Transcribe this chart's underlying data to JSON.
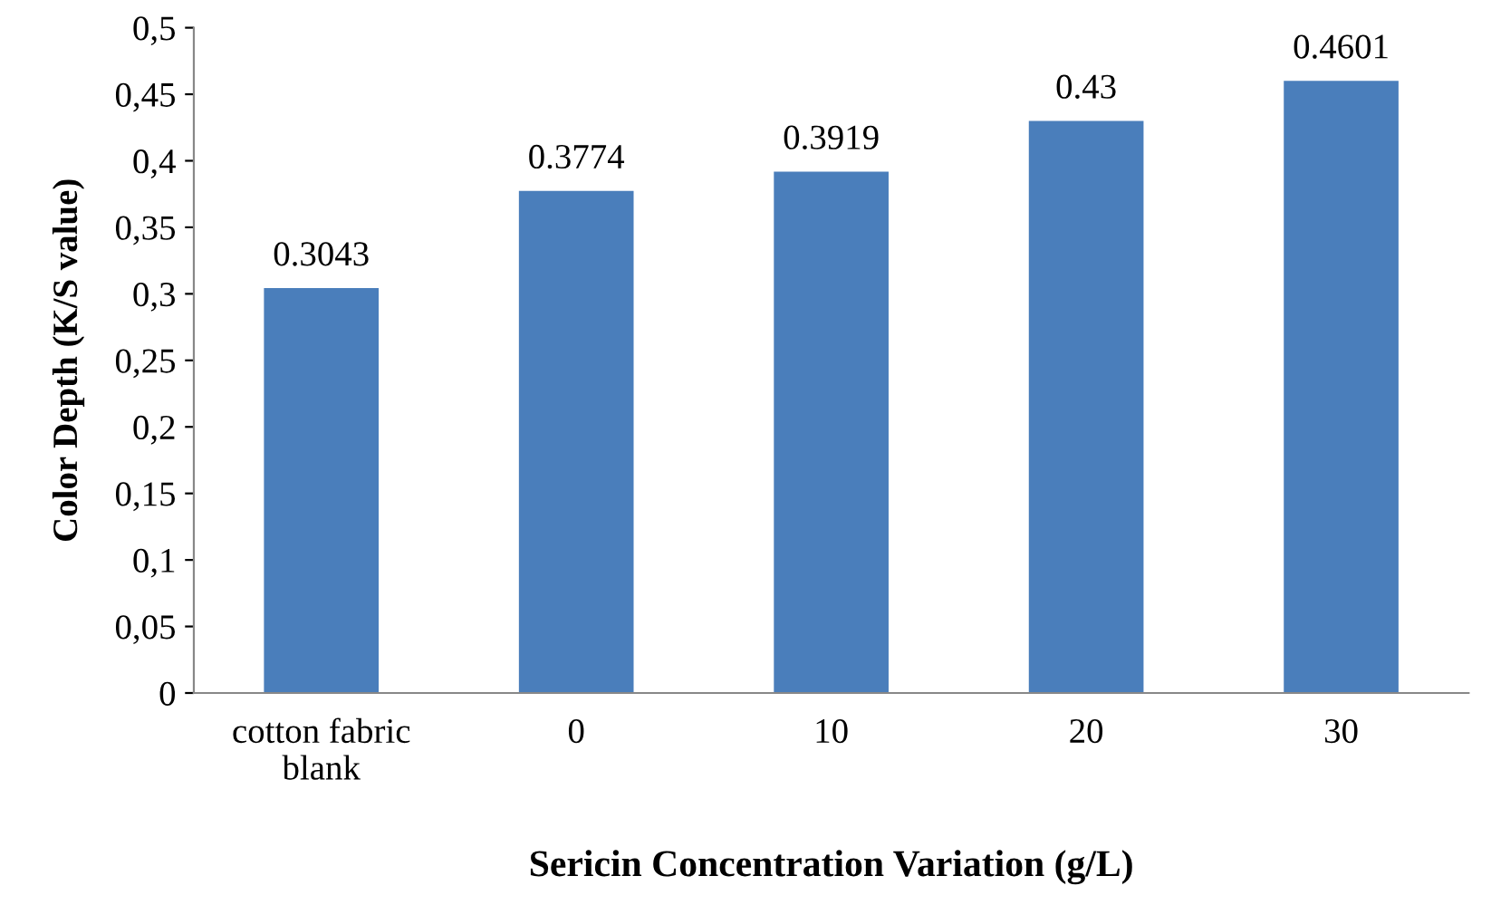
{
  "chart_data": {
    "type": "bar",
    "xlabel": "Sericin Concentration Variation (g/L)",
    "ylabel": "Color Depth (K/S value)",
    "categories": [
      "cotton fabric\nblank",
      "0",
      "10",
      "20",
      "30"
    ],
    "values": [
      0.3043,
      0.3774,
      0.3919,
      0.43,
      0.4601
    ],
    "color": "#4a7ebb",
    "ylim": [
      0,
      0.5
    ],
    "yticks": [
      0,
      {
        "value": 0.05,
        "label": "0,05"
      },
      {
        "value": 0.1,
        "label": "0,1"
      },
      {
        "value": 0.15,
        "label": "0,15"
      },
      {
        "value": 0.2,
        "label": "0,2"
      },
      {
        "value": 0.25,
        "label": "0,25"
      },
      {
        "value": 0.3,
        "label": "0,3"
      },
      {
        "value": 0.35,
        "label": "0,35"
      },
      {
        "value": 0.4,
        "label": "0,4"
      },
      {
        "value": 0.45,
        "label": "0,45"
      },
      {
        "value": 0.5,
        "label": "0,5"
      }
    ],
    "data_labels": true,
    "grid": false
  }
}
